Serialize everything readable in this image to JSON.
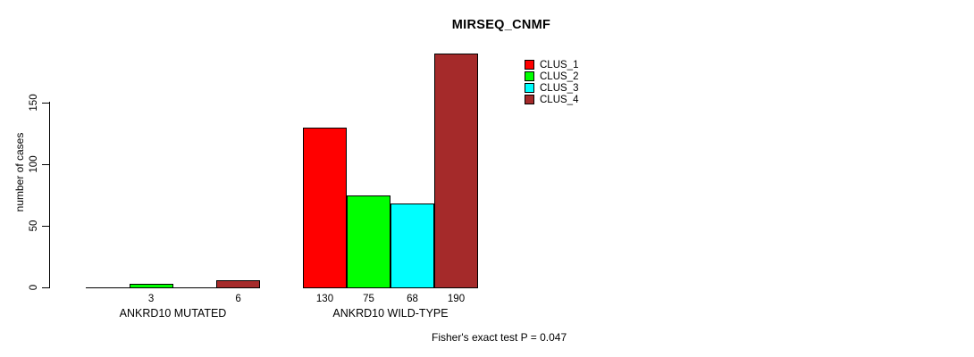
{
  "chart_data": {
    "type": "bar",
    "title": "MIRSEQ_CNMF",
    "xlabel": "",
    "ylabel": "number of cases",
    "ylim": [
      0,
      150
    ],
    "yticks": [
      0,
      50,
      100,
      150
    ],
    "grid": false,
    "legend_position": "top-right",
    "categories": [
      "ANKRD10 MUTATED",
      "ANKRD10 WILD-TYPE"
    ],
    "series": [
      {
        "name": "CLUS_1",
        "color": "#ff0000",
        "values": [
          0,
          130
        ]
      },
      {
        "name": "CLUS_2",
        "color": "#00ff00",
        "values": [
          3,
          75
        ]
      },
      {
        "name": "CLUS_3",
        "color": "#00ffff",
        "values": [
          0,
          68
        ]
      },
      {
        "name": "CLUS_4",
        "color": "#a52a2a",
        "values": [
          6,
          190
        ]
      }
    ],
    "bar_labels": [
      [
        "",
        "3",
        "",
        "6"
      ],
      [
        "130",
        "75",
        "68",
        "190"
      ]
    ],
    "annotation": "Fisher's exact test P = 0.047"
  }
}
